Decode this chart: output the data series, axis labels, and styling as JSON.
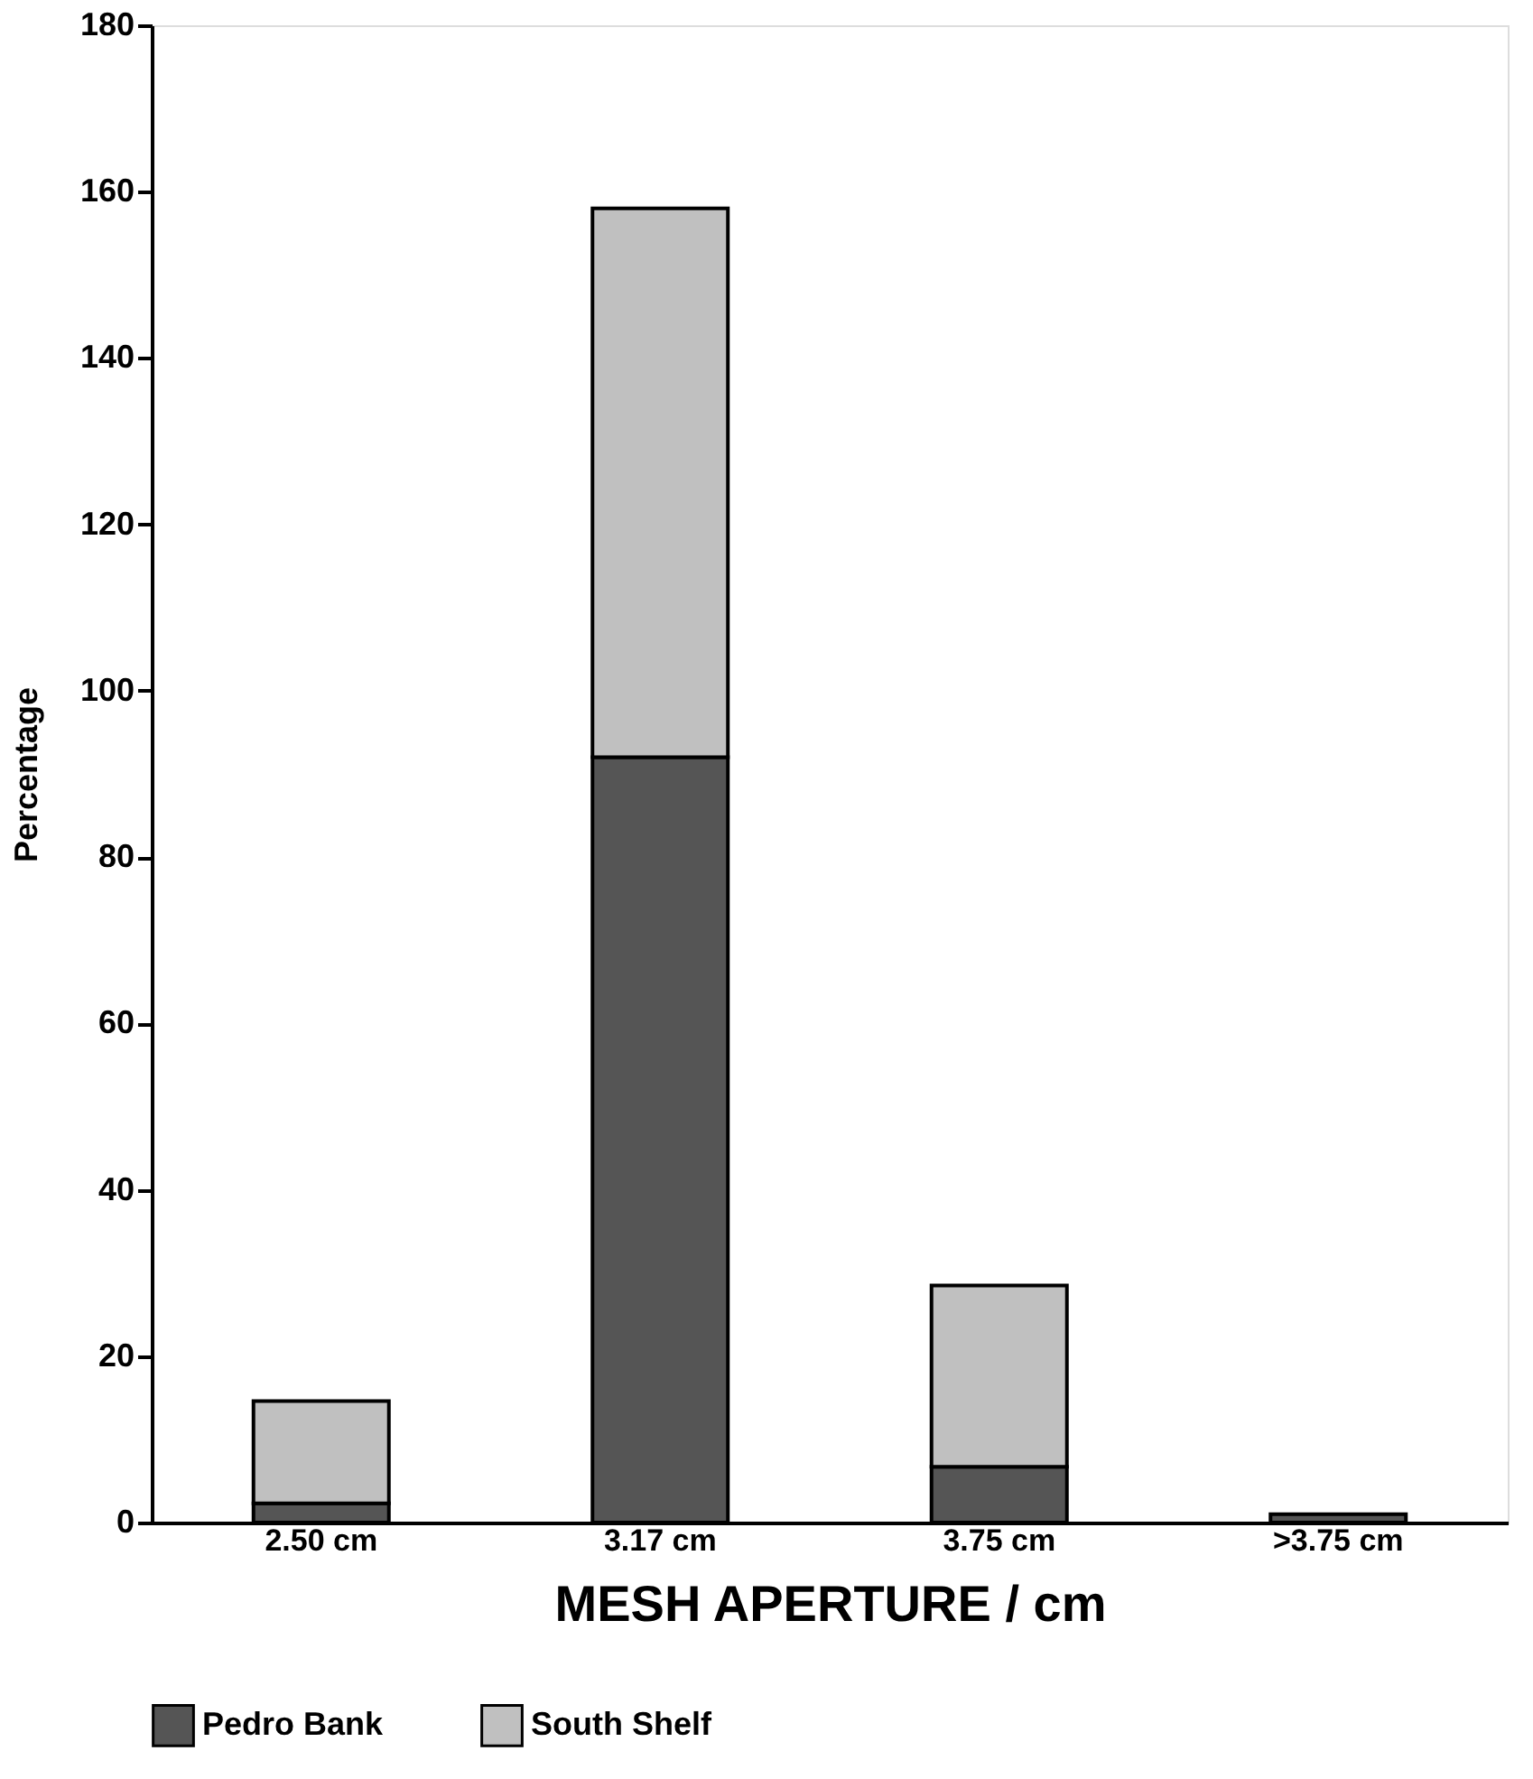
{
  "chart_data": {
    "type": "bar",
    "stacked": true,
    "categories": [
      "2.50 cm",
      "3.17 cm",
      "3.75 cm",
      ">3.75 cm"
    ],
    "series": [
      {
        "name": "Pedro Bank",
        "color": "#555555",
        "values": [
          2.3,
          92,
          6.7,
          1
        ]
      },
      {
        "name": "South Shelf",
        "color": "#c0c0c0",
        "values": [
          12.3,
          66,
          21.8,
          0
        ]
      }
    ],
    "xlabel": "MESH APERTURE / cm",
    "ylabel": "Percentage",
    "ylim": [
      0,
      180
    ],
    "yticks": [
      0,
      20,
      40,
      60,
      80,
      100,
      120,
      140,
      160,
      180
    ],
    "grid": false,
    "legend": "bottom"
  }
}
